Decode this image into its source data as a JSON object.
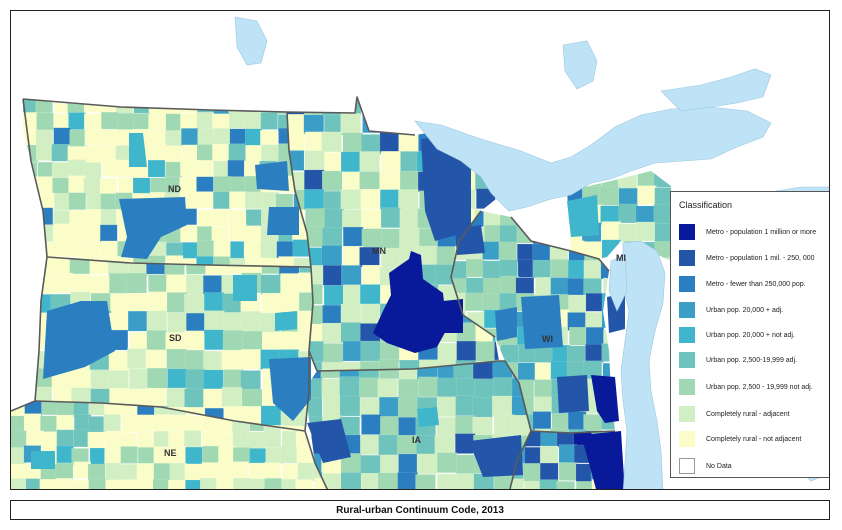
{
  "colors": {
    "water": "#bfe3f6",
    "border": "#5a5a5a",
    "no_data": "#ffffff"
  },
  "state_labels": [
    "ND",
    "SD",
    "NE",
    "MN",
    "IA",
    "WI",
    "MI"
  ],
  "legend": {
    "title": "Classification",
    "items": [
      {
        "label": "Metro - population 1 million or more",
        "color": "#08199a"
      },
      {
        "label": "Metro - population 1 mil. - 250, 000",
        "color": "#2356a8"
      },
      {
        "label": "Metro - fewer than 250,000 pop.",
        "color": "#2b7fc0"
      },
      {
        "label": "Urban pop. 20,000 + adj.",
        "color": "#3a9ec7"
      },
      {
        "label": "Urban pop. 20,000 + not adj.",
        "color": "#40b6cc"
      },
      {
        "label": "Urban pop. 2,500-19,999 adj.",
        "color": "#6ec3bd"
      },
      {
        "label": "Urban pop. 2,500 - 19,999 not adj.",
        "color": "#9fd8b3"
      },
      {
        "label": "Completely rural - adjacent",
        "color": "#d2efc4"
      },
      {
        "label": "Completely rural - not adjacent",
        "color": "#fbfdc9"
      },
      {
        "label": "No Data",
        "color": "#ffffff"
      }
    ]
  },
  "caption": "Rural-urban Continuum Code, 2013"
}
